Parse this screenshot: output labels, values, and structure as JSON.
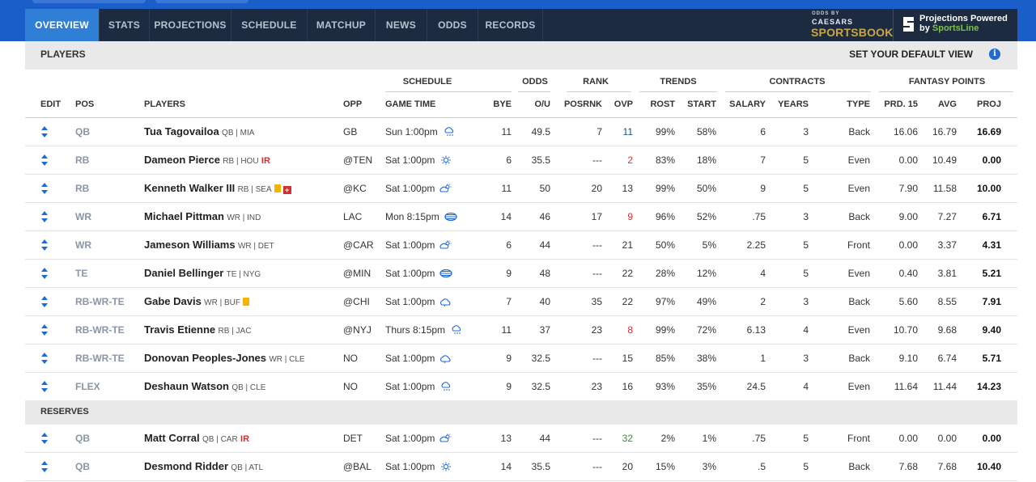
{
  "nav": {
    "tabs": [
      "OVERVIEW",
      "STATS",
      "PROJECTIONS",
      "SCHEDULE",
      "MATCHUP",
      "NEWS",
      "ODDS",
      "RECORDS"
    ],
    "active": 0
  },
  "sponsor": {
    "line1": "ODDS BY",
    "line2": "CAESARS",
    "line3": "SPORTSBOOK"
  },
  "projections": {
    "line1": "Projections Powered",
    "line2_prefix": "by ",
    "line2_brand": "SportsLine"
  },
  "players_bar": {
    "title": "PLAYERS",
    "default_view": "SET YOUR DEFAULT VIEW"
  },
  "group_headers": {
    "schedule": "SCHEDULE",
    "odds": "ODDS",
    "rank": "RANK",
    "trends": "TRENDS",
    "contracts": "CONTRACTS",
    "fantasy": "FANTASY POINTS"
  },
  "columns": {
    "edit": "EDIT",
    "pos": "POS",
    "players": "PLAYERS",
    "opp": "OPP",
    "gametime": "GAME TIME",
    "bye": "BYE",
    "ou": "O/U",
    "posrnk": "POSRNK",
    "ovp": "OVP",
    "rost": "ROST",
    "start": "START",
    "salary": "SALARY",
    "years": "YEARS",
    "type": "TYPE",
    "prd": "PRD. 15",
    "avg": "AVG",
    "proj": "PROJ"
  },
  "starters": [
    {
      "pos": "QB",
      "name": "Tua Tagovailoa",
      "meta": "QB | MIA",
      "ir": "",
      "note": false,
      "inj": false,
      "opp": "GB",
      "time": "Sun 1:00pm",
      "weather": "rain-icon",
      "bye": "11",
      "ou": "49.5",
      "posrnk": "7",
      "ovp": "11",
      "ovp_color": "blue",
      "rost": "99%",
      "start": "58%",
      "salary": "6",
      "years": "3",
      "type": "Back",
      "prd": "16.06",
      "avg": "16.79",
      "proj": "16.69"
    },
    {
      "pos": "RB",
      "name": "Dameon Pierce",
      "meta": "RB | HOU",
      "ir": "IR",
      "note": false,
      "inj": false,
      "opp": "@TEN",
      "time": "Sat 1:00pm",
      "weather": "sun-icon",
      "bye": "6",
      "ou": "35.5",
      "posrnk": "---",
      "ovp": "2",
      "ovp_color": "red",
      "rost": "83%",
      "start": "18%",
      "salary": "7",
      "years": "5",
      "type": "Even",
      "prd": "0.00",
      "avg": "10.49",
      "proj": "0.00"
    },
    {
      "pos": "RB",
      "name": "Kenneth Walker III",
      "meta": "RB | SEA",
      "ir": "",
      "note": true,
      "inj": true,
      "opp": "@KC",
      "time": "Sat 1:00pm",
      "weather": "partly-cloudy-icon",
      "bye": "11",
      "ou": "50",
      "posrnk": "20",
      "ovp": "13",
      "ovp_color": "",
      "rost": "99%",
      "start": "50%",
      "salary": "9",
      "years": "5",
      "type": "Even",
      "prd": "7.90",
      "avg": "11.58",
      "proj": "10.00"
    },
    {
      "pos": "WR",
      "name": "Michael Pittman",
      "meta": "WR | IND",
      "ir": "",
      "note": false,
      "inj": false,
      "opp": "LAC",
      "time": "Mon 8:15pm",
      "weather": "dome-icon",
      "bye": "14",
      "ou": "46",
      "posrnk": "17",
      "ovp": "9",
      "ovp_color": "red",
      "rost": "96%",
      "start": "52%",
      "salary": ".75",
      "years": "3",
      "type": "Back",
      "prd": "9.00",
      "avg": "7.27",
      "proj": "6.71"
    },
    {
      "pos": "WR",
      "name": "Jameson Williams",
      "meta": "WR | DET",
      "ir": "",
      "note": false,
      "inj": false,
      "opp": "@CAR",
      "time": "Sat 1:00pm",
      "weather": "partly-cloudy-icon",
      "bye": "6",
      "ou": "44",
      "posrnk": "---",
      "ovp": "21",
      "ovp_color": "",
      "rost": "50%",
      "start": "5%",
      "salary": "2.25",
      "years": "5",
      "type": "Front",
      "prd": "0.00",
      "avg": "3.37",
      "proj": "4.31"
    },
    {
      "pos": "TE",
      "name": "Daniel Bellinger",
      "meta": "TE | NYG",
      "ir": "",
      "note": false,
      "inj": false,
      "opp": "@MIN",
      "time": "Sat 1:00pm",
      "weather": "dome-icon",
      "bye": "9",
      "ou": "48",
      "posrnk": "---",
      "ovp": "22",
      "ovp_color": "",
      "rost": "28%",
      "start": "12%",
      "salary": "4",
      "years": "5",
      "type": "Even",
      "prd": "0.40",
      "avg": "3.81",
      "proj": "5.21"
    },
    {
      "pos": "RB-WR-TE",
      "name": "Gabe Davis",
      "meta": "WR | BUF",
      "ir": "",
      "note": true,
      "inj": false,
      "opp": "@CHI",
      "time": "Sat 1:00pm",
      "weather": "cloud-icon",
      "bye": "7",
      "ou": "40",
      "posrnk": "35",
      "ovp": "22",
      "ovp_color": "",
      "rost": "97%",
      "start": "49%",
      "salary": "2",
      "years": "3",
      "type": "Back",
      "prd": "5.60",
      "avg": "8.55",
      "proj": "7.91"
    },
    {
      "pos": "RB-WR-TE",
      "name": "Travis Etienne",
      "meta": "RB | JAC",
      "ir": "",
      "note": false,
      "inj": false,
      "opp": "@NYJ",
      "time": "Thurs 8:15pm",
      "weather": "rain-icon",
      "bye": "11",
      "ou": "37",
      "posrnk": "23",
      "ovp": "8",
      "ovp_color": "red",
      "rost": "99%",
      "start": "72%",
      "salary": "6.13",
      "years": "4",
      "type": "Even",
      "prd": "10.70",
      "avg": "9.68",
      "proj": "9.40"
    },
    {
      "pos": "RB-WR-TE",
      "name": "Donovan Peoples-Jones",
      "meta": "WR | CLE",
      "ir": "",
      "note": false,
      "inj": false,
      "opp": "NO",
      "time": "Sat 1:00pm",
      "weather": "cloud-icon",
      "bye": "9",
      "ou": "32.5",
      "posrnk": "---",
      "ovp": "15",
      "ovp_color": "",
      "rost": "85%",
      "start": "38%",
      "salary": "1",
      "years": "3",
      "type": "Back",
      "prd": "9.10",
      "avg": "6.74",
      "proj": "5.71"
    },
    {
      "pos": "FLEX",
      "name": "Deshaun Watson",
      "meta": "QB | CLE",
      "ir": "",
      "note": false,
      "inj": false,
      "opp": "NO",
      "time": "Sat 1:00pm",
      "weather": "rain-icon",
      "bye": "9",
      "ou": "32.5",
      "posrnk": "23",
      "ovp": "16",
      "ovp_color": "",
      "rost": "93%",
      "start": "35%",
      "salary": "24.5",
      "years": "4",
      "type": "Even",
      "prd": "11.64",
      "avg": "11.44",
      "proj": "14.23"
    }
  ],
  "reserves_title": "RESERVES",
  "reserves": [
    {
      "pos": "QB",
      "name": "Matt Corral",
      "meta": "QB | CAR",
      "ir": "IR",
      "note": false,
      "inj": false,
      "opp": "DET",
      "time": "Sat 1:00pm",
      "weather": "partly-cloudy-icon",
      "bye": "13",
      "ou": "44",
      "posrnk": "---",
      "ovp": "32",
      "ovp_color": "green",
      "rost": "2%",
      "start": "1%",
      "salary": ".75",
      "years": "5",
      "type": "Front",
      "prd": "0.00",
      "avg": "0.00",
      "proj": "0.00"
    },
    {
      "pos": "QB",
      "name": "Desmond Ridder",
      "meta": "QB | ATL",
      "ir": "",
      "note": false,
      "inj": false,
      "opp": "@BAL",
      "time": "Sat 1:00pm",
      "weather": "sun-icon",
      "bye": "14",
      "ou": "35.5",
      "posrnk": "---",
      "ovp": "20",
      "ovp_color": "",
      "rost": "15%",
      "start": "3%",
      "salary": ".5",
      "years": "5",
      "type": "Back",
      "prd": "7.68",
      "avg": "7.68",
      "proj": "10.40"
    }
  ]
}
